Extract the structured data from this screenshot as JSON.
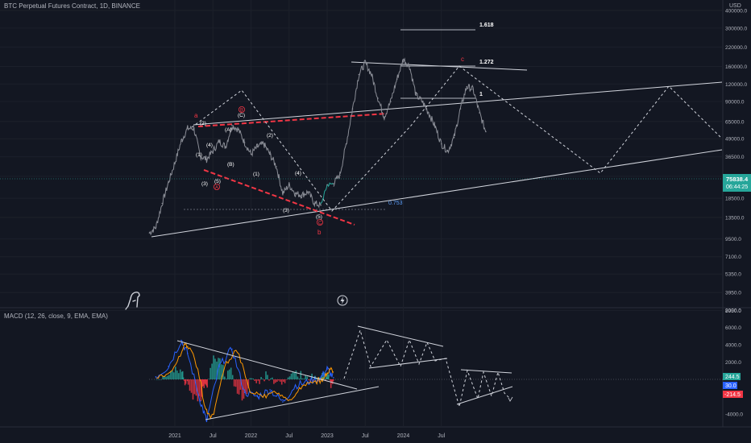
{
  "header": {
    "symbol_title": "BTC Perpetual Futures Contract, 1D, BINANCE",
    "currency": "USD",
    "macd_title": "MACD (12, 26, close, 9, EMA, EMA)"
  },
  "chart_data": {
    "type": "line",
    "price_axis": {
      "scale": "log",
      "ticks": [
        "400000.0",
        "300000.0",
        "220000.0",
        "160000.0",
        "120000.0",
        "90000.0",
        "65000.0",
        "49000.0",
        "36500.0",
        "26500.0",
        "18500.0",
        "13500.0",
        "9500.0",
        "7100.0",
        "5350.0",
        "3950.0",
        "2950.0"
      ],
      "current_price": "75838.4",
      "countdown": "06:44:25"
    },
    "time_axis": {
      "ticks": [
        "2021",
        "Jul",
        "2022",
        "Jul",
        "2023",
        "Jul",
        "2024",
        "Jul"
      ]
    },
    "fib_levels": [
      {
        "label": "1.618",
        "value": 400000
      },
      {
        "label": "1.272",
        "value": 220000
      },
      {
        "label": "1",
        "value": 120000
      },
      {
        "label": "0.753",
        "value": 16800
      }
    ],
    "wave_labels": {
      "red": [
        "a",
        "c",
        "b",
        "B",
        "A",
        "C"
      ],
      "white": [
        "(2)",
        "(A)",
        "(C)",
        "(4)",
        "(1)",
        "(B)",
        "(2)",
        "(3)",
        "(5)",
        "(1)",
        "(4)",
        "(3)",
        "(5)"
      ]
    },
    "price_series": [
      {
        "t": "2020-09",
        "v": 10500
      },
      {
        "t": "2020-10",
        "v": 11500
      },
      {
        "t": "2020-11",
        "v": 17000
      },
      {
        "t": "2020-12",
        "v": 24000
      },
      {
        "t": "2021-01",
        "v": 33000
      },
      {
        "t": "2021-02",
        "v": 47000
      },
      {
        "t": "2021-03",
        "v": 58000
      },
      {
        "t": "2021-04",
        "v": 58000
      },
      {
        "t": "2021-05",
        "v": 37000
      },
      {
        "t": "2021-06",
        "v": 35000
      },
      {
        "t": "2021-07",
        "v": 40000
      },
      {
        "t": "2021-08",
        "v": 47000
      },
      {
        "t": "2021-09",
        "v": 43000
      },
      {
        "t": "2021-10",
        "v": 61000
      },
      {
        "t": "2021-11",
        "v": 57000
      },
      {
        "t": "2021-12",
        "v": 46000
      },
      {
        "t": "2022-01",
        "v": 38000
      },
      {
        "t": "2022-02",
        "v": 43000
      },
      {
        "t": "2022-03",
        "v": 45000
      },
      {
        "t": "2022-04",
        "v": 38000
      },
      {
        "t": "2022-05",
        "v": 31000
      },
      {
        "t": "2022-06",
        "v": 20000
      },
      {
        "t": "2022-07",
        "v": 23000
      },
      {
        "t": "2022-08",
        "v": 20000
      },
      {
        "t": "2022-09",
        "v": 19500
      },
      {
        "t": "2022-10",
        "v": 20500
      },
      {
        "t": "2022-11",
        "v": 17000
      },
      {
        "t": "2022-12",
        "v": 16500
      },
      {
        "t": "2023-01",
        "v": 23000
      },
      {
        "t": "2023-02",
        "v": 23500
      }
    ],
    "projection_series": [
      {
        "t": "2023-03",
        "v": 27000
      },
      {
        "t": "2023-04",
        "v": 45000
      },
      {
        "t": "2023-05",
        "v": 80000
      },
      {
        "t": "2023-06",
        "v": 140000
      },
      {
        "t": "2023-07",
        "v": 170000
      },
      {
        "t": "2023-08",
        "v": 140000
      },
      {
        "t": "2023-09",
        "v": 95000
      },
      {
        "t": "2023-10",
        "v": 70000
      },
      {
        "t": "2023-11",
        "v": 90000
      },
      {
        "t": "2023-12",
        "v": 130000
      },
      {
        "t": "2024-01",
        "v": 180000
      },
      {
        "t": "2024-02",
        "v": 160000
      },
      {
        "t": "2024-03",
        "v": 100000
      },
      {
        "t": "2024-04",
        "v": 90000
      },
      {
        "t": "2024-05",
        "v": 75000
      },
      {
        "t": "2024-06",
        "v": 60000
      },
      {
        "t": "2024-07",
        "v": 45000
      },
      {
        "t": "2024-08",
        "v": 40000
      },
      {
        "t": "2024-09",
        "v": 50000
      },
      {
        "t": "2024-10",
        "v": 80000
      },
      {
        "t": "2024-11",
        "v": 115000
      },
      {
        "t": "2024-12",
        "v": 110000
      },
      {
        "t": "2025-01",
        "v": 75000
      },
      {
        "t": "2025-02",
        "v": 55000
      }
    ],
    "macd_axis": {
      "ticks": [
        "8000.0",
        "6000.0",
        "4000.0",
        "2000.0",
        "-4000.0"
      ],
      "badges": [
        {
          "label": "244.5",
          "color": "#26a69a"
        },
        {
          "label": "30.0",
          "color": "#2962ff"
        },
        {
          "label": "-214.5",
          "color": "#f23645"
        }
      ]
    },
    "macd_series": [
      {
        "t": "2020-10",
        "v": 300
      },
      {
        "t": "2020-12",
        "v": 1500
      },
      {
        "t": "2021-02",
        "v": 4500
      },
      {
        "t": "2021-03",
        "v": 3000
      },
      {
        "t": "2021-05",
        "v": -2500
      },
      {
        "t": "2021-06",
        "v": -4800
      },
      {
        "t": "2021-08",
        "v": 1500
      },
      {
        "t": "2021-10",
        "v": 3500
      },
      {
        "t": "2021-12",
        "v": -1500
      },
      {
        "t": "2022-02",
        "v": -2000
      },
      {
        "t": "2022-04",
        "v": -1200
      },
      {
        "t": "2022-06",
        "v": -2600
      },
      {
        "t": "2022-08",
        "v": -700
      },
      {
        "t": "2022-10",
        "v": -300
      },
      {
        "t": "2022-12",
        "v": 200
      },
      {
        "t": "2023-01",
        "v": 1200
      },
      {
        "t": "2023-02",
        "v": 200
      }
    ]
  },
  "colors": {
    "background": "#131722",
    "price": "#8a8d96",
    "grid": "#1e222d",
    "red": "#f23645",
    "accent": "#2962ff",
    "teal": "#26a69a",
    "orange": "#ff9800",
    "white": "#d1d4dc"
  },
  "icons": [
    "dino-logo-icon",
    "lightning-icon"
  ]
}
